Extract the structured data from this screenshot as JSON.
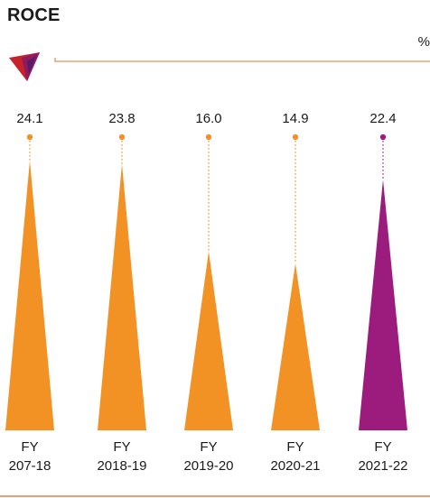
{
  "chart_data": {
    "type": "bar",
    "title": "ROCE",
    "unit": "%",
    "categories": [
      "FY\n207-18",
      "FY\n2018-19",
      "FY\n2019-20",
      "FY\n2020-21",
      "FY\n2021-22"
    ],
    "values": [
      24.1,
      23.8,
      16.0,
      14.9,
      22.4
    ],
    "value_labels": [
      "24.1",
      "23.8",
      "16.0",
      "14.9",
      "22.4"
    ],
    "highlight_index": 4,
    "ylim": [
      0,
      25
    ],
    "colors": {
      "base": "#F39224",
      "highlight": "#9B1C7C",
      "rule": "#E8A07A"
    }
  }
}
